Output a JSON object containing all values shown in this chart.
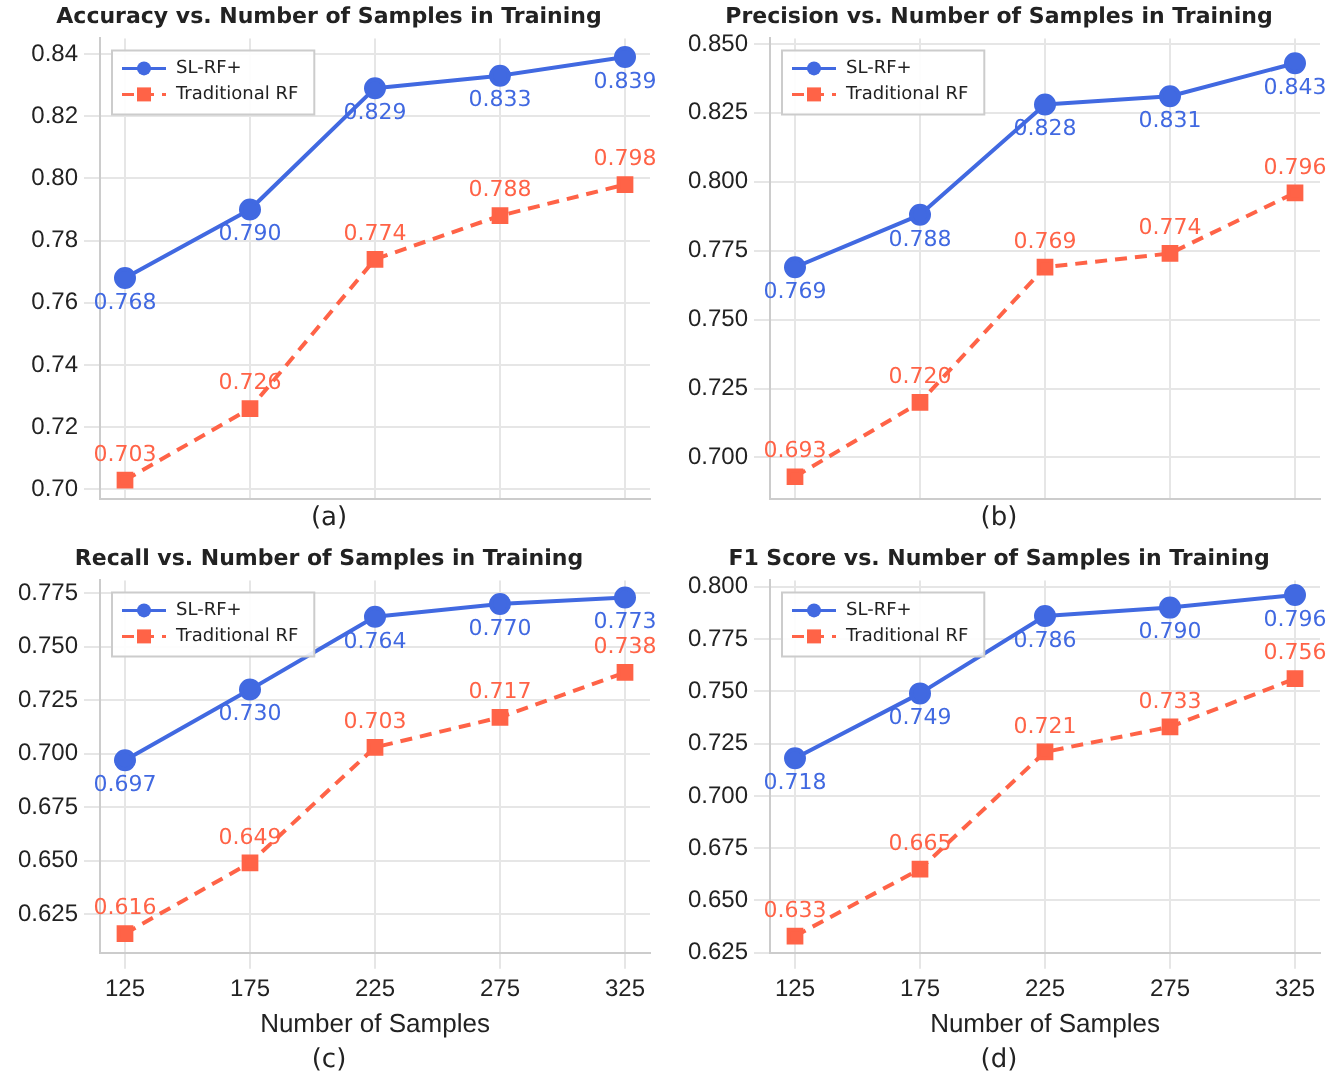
{
  "chart_data": [
    {
      "type": "line",
      "title": "Accuracy vs. Number of Samples in Training",
      "x": [
        125,
        175,
        225,
        275,
        325
      ],
      "xlim": [
        115,
        335
      ],
      "xticks": [
        125,
        175,
        225,
        275,
        325
      ],
      "ylim": [
        0.697,
        0.845
      ],
      "yticks": [
        {
          "value": 0.7,
          "label": "0.70"
        },
        {
          "value": 0.72,
          "label": "0.72"
        },
        {
          "value": 0.74,
          "label": "0.74"
        },
        {
          "value": 0.76,
          "label": "0.76"
        },
        {
          "value": 0.78,
          "label": "0.78"
        },
        {
          "value": 0.8,
          "label": "0.80"
        },
        {
          "value": 0.82,
          "label": "0.82"
        },
        {
          "value": 0.84,
          "label": "0.84"
        }
      ],
      "tick_labels": "y",
      "grid": true,
      "legend": "top left",
      "annotations": [
        "(a)"
      ],
      "series": [
        {
          "name": "SL-RF+",
          "color": "#4169e1",
          "marker": "circle",
          "line_style": "solid",
          "values": [
            0.768,
            0.79,
            0.829,
            0.833,
            0.839
          ],
          "value_labels": [
            "0.768",
            "0.790",
            "0.829",
            "0.833",
            "0.839"
          ]
        },
        {
          "name": "Traditional RF",
          "color": "#ff6347",
          "marker": "square",
          "line_style": "dashed",
          "values": [
            0.703,
            0.726,
            0.774,
            0.788,
            0.798
          ],
          "value_labels": [
            "0.703",
            "0.726",
            "0.774",
            "0.788",
            "0.798"
          ]
        }
      ]
    },
    {
      "type": "line",
      "title": "Precision vs. Number of Samples in Training",
      "x": [
        125,
        175,
        225,
        275,
        325
      ],
      "xlim": [
        115,
        335
      ],
      "xticks": [
        125,
        175,
        225,
        275,
        325
      ],
      "ylim": [
        0.685,
        0.852
      ],
      "yticks": [
        {
          "value": 0.7,
          "label": "0.700"
        },
        {
          "value": 0.725,
          "label": "0.725"
        },
        {
          "value": 0.75,
          "label": "0.750"
        },
        {
          "value": 0.775,
          "label": "0.775"
        },
        {
          "value": 0.8,
          "label": "0.800"
        },
        {
          "value": 0.825,
          "label": "0.825"
        },
        {
          "value": 0.85,
          "label": "0.850"
        }
      ],
      "tick_labels": "y",
      "grid": true,
      "legend": "top left",
      "annotations": [
        "(b)"
      ],
      "series": [
        {
          "name": "SL-RF+",
          "color": "#4169e1",
          "marker": "circle",
          "line_style": "solid",
          "values": [
            0.769,
            0.788,
            0.828,
            0.831,
            0.843
          ],
          "value_labels": [
            "0.769",
            "0.788",
            "0.828",
            "0.831",
            "0.843"
          ]
        },
        {
          "name": "Traditional RF",
          "color": "#ff6347",
          "marker": "square",
          "line_style": "dashed",
          "values": [
            0.693,
            0.72,
            0.769,
            0.774,
            0.796
          ],
          "value_labels": [
            "0.693",
            "0.720",
            "0.769",
            "0.774",
            "0.796"
          ]
        }
      ]
    },
    {
      "type": "line",
      "title": "Recall vs. Number of Samples in Training",
      "xlabel": "Number of Samples",
      "x": [
        125,
        175,
        225,
        275,
        325
      ],
      "xlim": [
        115,
        335
      ],
      "xticks": [
        125,
        175,
        225,
        275,
        325
      ],
      "ylim": [
        0.607,
        0.781
      ],
      "yticks": [
        {
          "value": 0.625,
          "label": "0.625"
        },
        {
          "value": 0.65,
          "label": "0.650"
        },
        {
          "value": 0.675,
          "label": "0.675"
        },
        {
          "value": 0.7,
          "label": "0.700"
        },
        {
          "value": 0.725,
          "label": "0.725"
        },
        {
          "value": 0.75,
          "label": "0.750"
        },
        {
          "value": 0.775,
          "label": "0.775"
        }
      ],
      "grid": true,
      "legend": "top left",
      "annotations": [
        "(c)"
      ],
      "series": [
        {
          "name": "SL-RF+",
          "color": "#4169e1",
          "marker": "circle",
          "line_style": "solid",
          "values": [
            0.697,
            0.73,
            0.764,
            0.77,
            0.773
          ],
          "value_labels": [
            "0.697",
            "0.730",
            "0.764",
            "0.770",
            "0.773"
          ]
        },
        {
          "name": "Traditional RF",
          "color": "#ff6347",
          "marker": "square",
          "line_style": "dashed",
          "values": [
            0.616,
            0.649,
            0.703,
            0.717,
            0.738
          ],
          "value_labels": [
            "0.616",
            "0.649",
            "0.703",
            "0.717",
            "0.738"
          ]
        }
      ]
    },
    {
      "type": "line",
      "title": "F1 Score vs. Number of Samples in Training",
      "xlabel": "Number of Samples",
      "x": [
        125,
        175,
        225,
        275,
        325
      ],
      "xlim": [
        115,
        335
      ],
      "xticks": [
        125,
        175,
        225,
        275,
        325
      ],
      "ylim": [
        0.625,
        0.803
      ],
      "yticks": [
        {
          "value": 0.625,
          "label": "0.625"
        },
        {
          "value": 0.65,
          "label": "0.650"
        },
        {
          "value": 0.675,
          "label": "0.675"
        },
        {
          "value": 0.7,
          "label": "0.700"
        },
        {
          "value": 0.725,
          "label": "0.725"
        },
        {
          "value": 0.75,
          "label": "0.750"
        },
        {
          "value": 0.775,
          "label": "0.775"
        },
        {
          "value": 0.8,
          "label": "0.800"
        }
      ],
      "grid": true,
      "legend": "top left",
      "annotations": [
        "(d)"
      ],
      "series": [
        {
          "name": "SL-RF+",
          "color": "#4169e1",
          "marker": "circle",
          "line_style": "solid",
          "values": [
            0.718,
            0.749,
            0.786,
            0.79,
            0.796
          ],
          "value_labels": [
            "0.718",
            "0.749",
            "0.786",
            "0.790",
            "0.796"
          ]
        },
        {
          "name": "Traditional RF",
          "color": "#ff6347",
          "marker": "square",
          "line_style": "dashed",
          "values": [
            0.633,
            0.665,
            0.721,
            0.733,
            0.756
          ],
          "value_labels": [
            "0.633",
            "0.665",
            "0.721",
            "0.733",
            "0.756"
          ]
        }
      ]
    }
  ]
}
